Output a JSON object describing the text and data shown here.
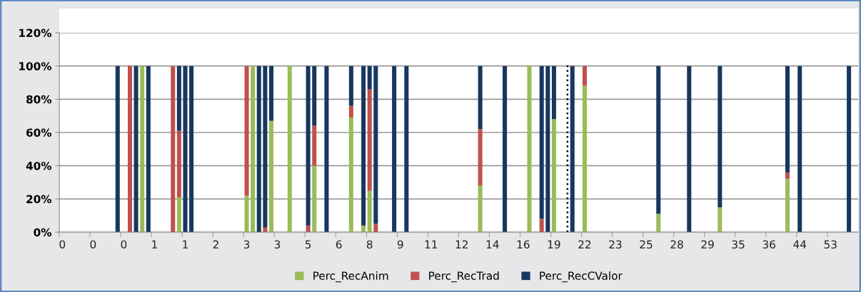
{
  "chart_data": {
    "type": "bar",
    "stacked": true,
    "categories": [
      "0",
      null,
      null,
      null,
      null,
      "0",
      null,
      null,
      null,
      null,
      "0",
      null,
      null,
      null,
      null,
      "1",
      null,
      null,
      null,
      null,
      "1",
      null,
      null,
      null,
      null,
      "2",
      null,
      null,
      null,
      null,
      "3",
      null,
      null,
      null,
      null,
      "3",
      null,
      null,
      null,
      null,
      "5",
      null,
      null,
      null,
      null,
      "6",
      null,
      null,
      null,
      null,
      "8",
      null,
      null,
      null,
      null,
      "9",
      null,
      null,
      null,
      null,
      "11",
      null,
      null,
      null,
      null,
      "12",
      null,
      null,
      null,
      null,
      "14",
      null,
      null,
      null,
      null,
      "16",
      null,
      null,
      null,
      null,
      "19",
      null,
      null,
      null,
      null,
      "22",
      null,
      null,
      null,
      null,
      "23",
      null,
      null,
      null,
      null,
      "25",
      null,
      null,
      null,
      null,
      "28",
      null,
      null,
      null,
      null,
      "29",
      null,
      null,
      null,
      null,
      "35",
      null,
      null,
      null,
      null,
      "36",
      null,
      null,
      null,
      null,
      "44",
      null,
      null,
      null,
      null,
      "53",
      null,
      null,
      null,
      null
    ],
    "series": [
      {
        "name": "Perc_RecAnim",
        "color": "#9bbb59",
        "values": [
          null,
          null,
          null,
          null,
          null,
          null,
          null,
          null,
          null,
          0,
          null,
          0,
          0,
          100,
          0,
          null,
          null,
          null,
          0,
          21,
          0,
          0,
          null,
          null,
          null,
          null,
          null,
          null,
          null,
          null,
          22,
          100,
          0,
          0,
          67,
          null,
          null,
          100,
          null,
          null,
          0,
          40,
          null,
          0,
          null,
          null,
          null,
          69,
          null,
          4,
          25,
          0,
          null,
          null,
          0,
          null,
          0,
          null,
          null,
          null,
          null,
          null,
          null,
          null,
          null,
          null,
          null,
          null,
          28,
          null,
          null,
          null,
          0,
          null,
          null,
          null,
          100,
          null,
          0,
          0,
          68,
          null,
          null,
          0,
          null,
          88,
          null,
          null,
          null,
          null,
          null,
          null,
          null,
          null,
          null,
          null,
          null,
          11,
          null,
          null,
          null,
          null,
          0,
          null,
          null,
          null,
          null,
          15,
          null,
          null,
          null,
          null,
          null,
          null,
          null,
          null,
          null,
          null,
          32,
          null,
          0,
          null,
          null,
          null,
          null,
          null,
          null,
          null,
          0,
          null
        ]
      },
      {
        "name": "Perc_RecTrad",
        "color": "#c0504d",
        "values": [
          null,
          null,
          null,
          null,
          null,
          null,
          null,
          null,
          null,
          0,
          null,
          100,
          0,
          0,
          0,
          null,
          null,
          null,
          100,
          40,
          0,
          0,
          null,
          null,
          null,
          null,
          null,
          null,
          null,
          null,
          78,
          0,
          0,
          3,
          0,
          null,
          null,
          0,
          null,
          null,
          4,
          24,
          null,
          0,
          null,
          null,
          null,
          7,
          null,
          0,
          61,
          5,
          null,
          null,
          0,
          null,
          0,
          null,
          null,
          null,
          null,
          null,
          null,
          null,
          null,
          null,
          null,
          null,
          34,
          null,
          null,
          null,
          0,
          null,
          null,
          null,
          0,
          null,
          8,
          0,
          0,
          null,
          null,
          0,
          null,
          12,
          null,
          null,
          null,
          null,
          null,
          null,
          null,
          null,
          null,
          null,
          null,
          0,
          null,
          null,
          null,
          null,
          0,
          null,
          null,
          null,
          null,
          0,
          null,
          null,
          null,
          null,
          null,
          null,
          null,
          null,
          null,
          null,
          4,
          null,
          0,
          null,
          null,
          null,
          null,
          null,
          null,
          null,
          0,
          null
        ]
      },
      {
        "name": "Perc_RecCValor",
        "color": "#17375e",
        "values": [
          null,
          null,
          null,
          null,
          null,
          null,
          null,
          null,
          null,
          100,
          null,
          0,
          100,
          0,
          100,
          null,
          null,
          null,
          0,
          39,
          100,
          100,
          null,
          null,
          null,
          null,
          null,
          null,
          null,
          null,
          0,
          0,
          100,
          97,
          33,
          null,
          null,
          0,
          null,
          null,
          96,
          36,
          null,
          100,
          null,
          null,
          null,
          24,
          null,
          96,
          14,
          95,
          null,
          null,
          100,
          null,
          100,
          null,
          null,
          null,
          null,
          null,
          null,
          null,
          null,
          null,
          null,
          null,
          38,
          null,
          null,
          null,
          100,
          null,
          null,
          null,
          0,
          null,
          92,
          100,
          32,
          null,
          null,
          100,
          null,
          0,
          null,
          null,
          null,
          null,
          null,
          null,
          null,
          null,
          null,
          null,
          null,
          89,
          null,
          null,
          null,
          null,
          100,
          null,
          null,
          null,
          null,
          85,
          null,
          null,
          null,
          null,
          null,
          null,
          null,
          null,
          null,
          null,
          64,
          null,
          100,
          null,
          null,
          null,
          null,
          null,
          null,
          null,
          100,
          null
        ]
      }
    ],
    "ylim": [
      0,
      120
    ],
    "yticks": [
      {
        "value": 0,
        "label": "0%"
      },
      {
        "value": 20,
        "label": "20%"
      },
      {
        "value": 40,
        "label": "40%"
      },
      {
        "value": 60,
        "label": "60%"
      },
      {
        "value": 80,
        "label": "80%"
      },
      {
        "value": 100,
        "label": "100%"
      },
      {
        "value": 120,
        "label": "120%"
      }
    ],
    "grid": "y",
    "legend": "bottom"
  }
}
